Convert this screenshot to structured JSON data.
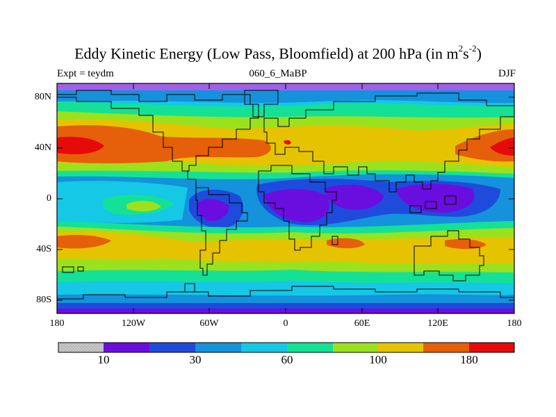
{
  "title": {
    "main": "Eddy Kinetic Energy (Low Pass, Bloomfield) at 200 hPa (in m",
    "sup1": "2",
    "mid": "s",
    "sup2": "-2",
    "end": ")"
  },
  "subtitle": {
    "left": "Expt = teydm",
    "center": "060_6_MaBP",
    "right": "DJF"
  },
  "axes": {
    "lat_ticks": [
      "80N",
      "40N",
      "0",
      "40S",
      "80S"
    ],
    "lon_ticks": [
      "180",
      "120W",
      "60W",
      "0",
      "60E",
      "120E",
      "180"
    ]
  },
  "colorbar": {
    "colors": [
      "#c8c8c8",
      "#6a0ee0",
      "#1e4bdc",
      "#1492dc",
      "#14c8e6",
      "#14e196",
      "#9be11e",
      "#e6c300",
      "#e65f0a",
      "#e60a0a"
    ],
    "labels": [
      "10",
      "30",
      "60",
      "100",
      "180"
    ]
  },
  "field_colors": {
    "purple": "#6a0ee0",
    "blue": "#1e4bdc",
    "mid_blue": "#1492dc",
    "cyan": "#14c8e6",
    "green": "#14e196",
    "yellowgreen": "#9be11e",
    "yellow": "#e6c300",
    "orange": "#e65f0a",
    "red": "#e60a0a",
    "lilac": "#a060e8"
  }
}
